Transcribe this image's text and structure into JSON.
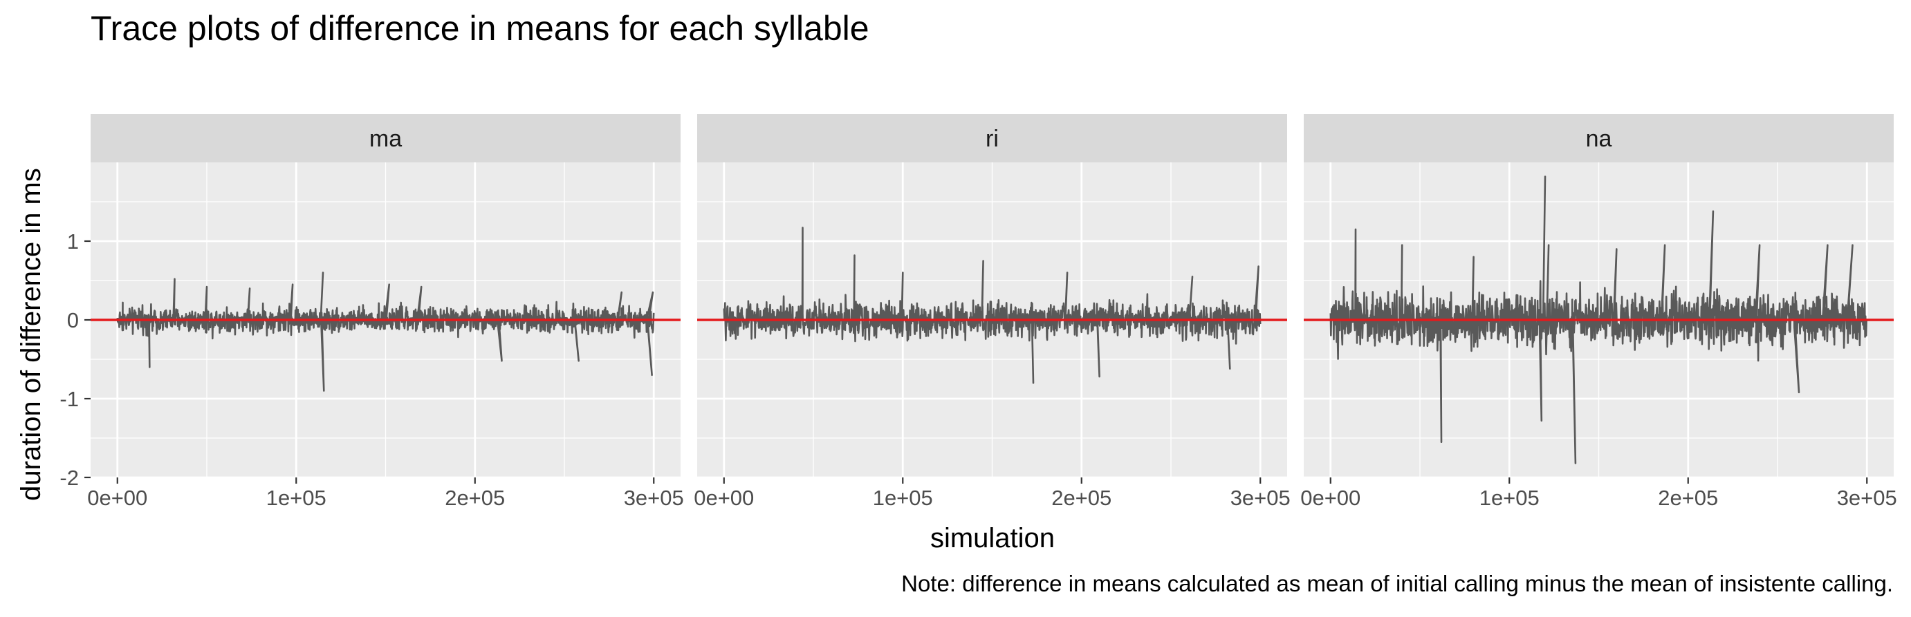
{
  "chart_data": {
    "type": "line",
    "title": "Trace plots of difference in means for each syllable",
    "xlabel": "simulation",
    "ylabel": "duration of difference in ms",
    "caption": "Note: difference in means calculated as mean of initial calling minus the mean of insistente calling.",
    "xlim": [
      -15000,
      315000
    ],
    "ylim": [
      -2,
      2
    ],
    "x_ticks": [
      0,
      100000,
      200000,
      300000
    ],
    "x_tick_labels": [
      "0e+00",
      "1e+05",
      "2e+05",
      "3e+05"
    ],
    "y_ticks": [
      -2,
      -1,
      0,
      1
    ],
    "y_tick_labels": [
      "-2",
      "-1",
      "0",
      "1"
    ],
    "reference_line": {
      "y": 0,
      "color": "#e41a1c"
    },
    "series_color": "#595959",
    "grid": true,
    "legend": "none",
    "facets": [
      {
        "label": "ma",
        "range": [
          -0.9,
          0.6
        ],
        "typical_amplitude": [
          -0.22,
          0.22
        ],
        "spikes": [
          {
            "x": 3000,
            "y": 0.22
          },
          {
            "x": 18000,
            "y": -0.6
          },
          {
            "x": 32000,
            "y": 0.52
          },
          {
            "x": 50000,
            "y": 0.42
          },
          {
            "x": 74000,
            "y": 0.4
          },
          {
            "x": 98000,
            "y": 0.45
          },
          {
            "x": 115000,
            "y": 0.6
          },
          {
            "x": 115500,
            "y": -0.9
          },
          {
            "x": 152000,
            "y": 0.45
          },
          {
            "x": 170000,
            "y": 0.42
          },
          {
            "x": 215000,
            "y": -0.52
          },
          {
            "x": 258000,
            "y": -0.52
          },
          {
            "x": 282000,
            "y": 0.35
          },
          {
            "x": 299000,
            "y": -0.7
          },
          {
            "x": 299500,
            "y": 0.35
          }
        ]
      },
      {
        "label": "ri",
        "range": [
          -0.82,
          1.18
        ],
        "typical_amplitude": [
          -0.3,
          0.3
        ],
        "spikes": [
          {
            "x": 44000,
            "y": 1.17
          },
          {
            "x": 73000,
            "y": 0.82
          },
          {
            "x": 100000,
            "y": 0.6
          },
          {
            "x": 145000,
            "y": 0.75
          },
          {
            "x": 173000,
            "y": -0.8
          },
          {
            "x": 192000,
            "y": 0.6
          },
          {
            "x": 210000,
            "y": -0.72
          },
          {
            "x": 262000,
            "y": 0.55
          },
          {
            "x": 283000,
            "y": -0.62
          },
          {
            "x": 299000,
            "y": 0.68
          }
        ]
      },
      {
        "label": "na",
        "range": [
          -1.82,
          1.82
        ],
        "typical_amplitude": [
          -0.45,
          0.45
        ],
        "spikes": [
          {
            "x": 14000,
            "y": 1.15
          },
          {
            "x": 40000,
            "y": 0.95
          },
          {
            "x": 62000,
            "y": -1.55
          },
          {
            "x": 80000,
            "y": 0.8
          },
          {
            "x": 118000,
            "y": -1.28
          },
          {
            "x": 120000,
            "y": 1.82
          },
          {
            "x": 122000,
            "y": 0.95
          },
          {
            "x": 137000,
            "y": -1.82
          },
          {
            "x": 160000,
            "y": 0.9
          },
          {
            "x": 187000,
            "y": 0.95
          },
          {
            "x": 214000,
            "y": 1.38
          },
          {
            "x": 240000,
            "y": 0.95
          },
          {
            "x": 262000,
            "y": -0.92
          },
          {
            "x": 278000,
            "y": 0.95
          },
          {
            "x": 292000,
            "y": 0.95
          }
        ]
      }
    ]
  }
}
